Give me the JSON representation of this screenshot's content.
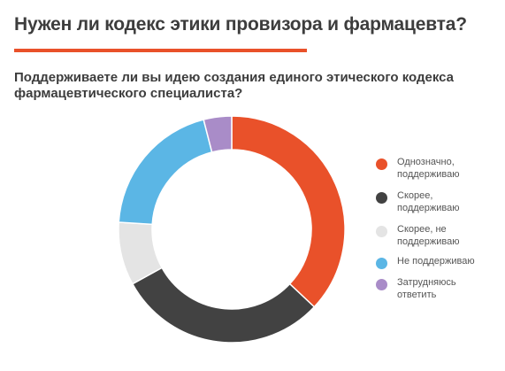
{
  "page": {
    "title": "Нужен ли кодекс этики провизора и фармацевта?",
    "accent_color": "#e9512a"
  },
  "chart_data": {
    "type": "pie",
    "variant": "donut",
    "title": "Поддерживаете ли вы идею создания единого этического кодекса фармацевтического специалиста?",
    "unit": "%",
    "legend_position": "right",
    "slices": [
      {
        "label": "Однозначно, поддерживаю",
        "value": 37,
        "color": "#e9512a"
      },
      {
        "label": "Скорее, поддерживаю",
        "value": 30,
        "color": "#424242"
      },
      {
        "label": "Скорее, не поддерживаю",
        "value": 9,
        "color": "#e4e4e4"
      },
      {
        "label": "Не поддерживаю",
        "value": 20,
        "color": "#5bb6e5"
      },
      {
        "label": "Затрудняюсь ответить",
        "value": 4,
        "color": "#a98cc8"
      }
    ]
  }
}
